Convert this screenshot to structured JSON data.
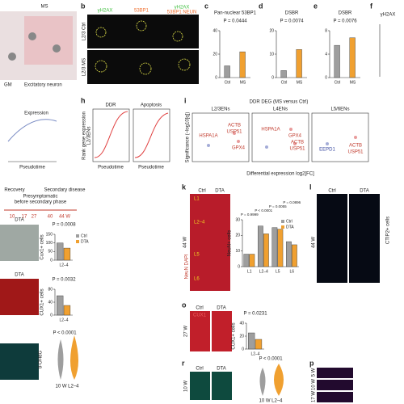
{
  "figure": {
    "panel_letters": {
      "b": "b",
      "c": "c",
      "d": "d",
      "e": "e",
      "f": "f",
      "h": "h",
      "i": "i",
      "k": "k",
      "l": "l",
      "o": "o",
      "r": "r",
      "p": "p"
    },
    "texts": {
      "ms": "MS",
      "gm": "GM",
      "exc": "Excitatory neuron",
      "b_c1": "γH2AX",
      "b_c2": "53BP1",
      "b_c3": "γH2AX",
      "b_c3b": "53BP1 NEUN",
      "b_r1": "L2/3 Ctrl",
      "b_r2": "L2/3 MS",
      "f_title": "γH2AX",
      "g_expr": "Expression",
      "g_pt": "Pseudotime",
      "h_t1": "DDR",
      "h_t2": "Apoptosis",
      "h_y": "Rank gene expression",
      "h_y2": "L2/3ENs",
      "h_x1": "Pseudotime",
      "h_x2": "Pseudotime",
      "i_title": "DDR DEG (MS versus Ctrl)",
      "i_p1": "L2/3ENs",
      "i_p2": "L4ENs",
      "i_p3": "L5/6ENs",
      "i_y": "Significance (−log10[q])",
      "i_x": "Differential expression log2[FC]",
      "g1": "ACTB",
      "g2": "USP51",
      "g3": "HSPA1A",
      "g4": "GPX4",
      "g5": "HSPA1A",
      "g6": "GPX4",
      "g7": "ACTB",
      "g8": "USP51",
      "g9": "EEPD1",
      "g10": "ACTB",
      "g11": "USP51",
      "j_rec": "Recovery",
      "j_pre": "Presymptomatic",
      "j_pre2": "before secondary phase",
      "j_sec": "Secondary disease",
      "j_t1": "10",
      "j_t2": "17",
      "j_t3": "27",
      "j_t4": "40",
      "j_t5": "44 W",
      "k_ctrl": "Ctrl",
      "k_dta": "DTA",
      "k_w": "44 W",
      "k_stain": "NeuN DAPI",
      "k_l1": "L1",
      "k_l2": "L2–4",
      "k_l5": "L5",
      "k_l6": "L6",
      "l_ctrl": "Ctrl",
      "l_dta": "DTA",
      "l_w": "44 W",
      "l_y": "CTIP2+ cells",
      "m_dta": "DTA",
      "m_dta2": "DTA",
      "v_p": "P < 0.0001",
      "v_y": "8-OHdG",
      "v_x": "10 W L2–4",
      "o_ctrl": "Ctrl",
      "o_dta": "DTA",
      "o_w": "27 W",
      "o_stain": "CUX1",
      "r_ctrl": "Ctrl",
      "r_dta": "DTA",
      "r_w": "10 W",
      "r_p": "P < 0.0001",
      "r_x": "10 W L2–4",
      "p_w1": "5 W",
      "p_w2": "10 W",
      "p_w3": "17 W"
    }
  },
  "chart_data": [
    {
      "type": "bar",
      "title": "Pan-nuclear 53BP1",
      "p_value": "P = 0.0444",
      "categories": [
        "Ctrl",
        "MS"
      ],
      "series": [
        {
          "name": "Ctrl",
          "color": "#9e9e9e",
          "values": [
            10,
            null
          ]
        },
        {
          "name": "MS",
          "color": "#f0a030",
          "values": [
            null,
            22
          ]
        }
      ],
      "ylim": [
        0,
        40
      ],
      "yticks": [
        0,
        20,
        40
      ]
    },
    {
      "type": "bar",
      "title": "DSBR",
      "p_value": "P = 0.0074",
      "categories": [
        "Ctrl",
        "MS"
      ],
      "series": [
        {
          "name": "Ctrl",
          "color": "#9e9e9e",
          "values": [
            3,
            null
          ]
        },
        {
          "name": "MS",
          "color": "#f0a030",
          "values": [
            null,
            12
          ]
        }
      ],
      "ylim": [
        0,
        20
      ],
      "yticks": [
        0,
        10,
        20
      ]
    },
    {
      "type": "bar",
      "title": "DSBR",
      "p_value": "P = 0.0076",
      "categories": [
        "Ctrl",
        "MS"
      ],
      "series": [
        {
          "name": "Ctrl",
          "color": "#9e9e9e",
          "values": [
            5.5,
            null
          ]
        },
        {
          "name": "MS",
          "color": "#f0a030",
          "values": [
            null,
            6.8
          ]
        }
      ],
      "ylim": [
        0,
        8
      ],
      "yticks": [
        0,
        4,
        8
      ]
    },
    {
      "type": "bar",
      "p_values": [
        "P = 0.9999",
        "P < 0.0001",
        "P = 0.0055",
        "P = 0.0896"
      ],
      "categories": [
        "L1",
        "L2–4",
        "L5",
        "L6"
      ],
      "series": [
        {
          "name": "Ctrl",
          "color": "#9e9e9e",
          "values": [
            8,
            26,
            25,
            16
          ]
        },
        {
          "name": "DTA",
          "color": "#f0a030",
          "values": [
            8,
            21,
            24,
            14
          ]
        }
      ],
      "ylim": [
        0,
        30
      ],
      "yticks": [
        0,
        10,
        20,
        30
      ],
      "ylabel": "NeuN+ cells",
      "legend": "top-right"
    },
    {
      "type": "bar",
      "p_value": "P = 0.0008",
      "categories": [
        "L2–4"
      ],
      "series": [
        {
          "name": "Ctrl",
          "color": "#9e9e9e",
          "values": [
            100
          ]
        },
        {
          "name": "DTA",
          "color": "#f0a030",
          "values": [
            70
          ]
        }
      ],
      "ylim": [
        0,
        150
      ],
      "yticks": [
        0,
        50,
        100,
        150
      ],
      "ylabel": "Cux1+ cells",
      "legend": "right"
    },
    {
      "type": "bar",
      "p_value": "P = 0.0032",
      "categories": [
        "L2–4"
      ],
      "series": [
        {
          "name": "Ctrl",
          "color": "#9e9e9e",
          "values": [
            60
          ]
        },
        {
          "name": "DTA",
          "color": "#f0a030",
          "values": [
            30
          ]
        }
      ],
      "ylim": [
        0,
        80
      ],
      "yticks": [
        0,
        40,
        80
      ],
      "ylabel": "CUX1+ cells"
    },
    {
      "type": "bar",
      "p_value": "P = 0.0231",
      "categories": [
        "L2–4"
      ],
      "series": [
        {
          "name": "Ctrl",
          "color": "#9e9e9e",
          "values": [
            25
          ]
        },
        {
          "name": "DTA",
          "color": "#f0a030",
          "values": [
            15
          ]
        }
      ],
      "ylim": [
        0,
        40
      ],
      "yticks": [
        0,
        20,
        40
      ],
      "ylabel": "CUX1+ cells"
    }
  ]
}
